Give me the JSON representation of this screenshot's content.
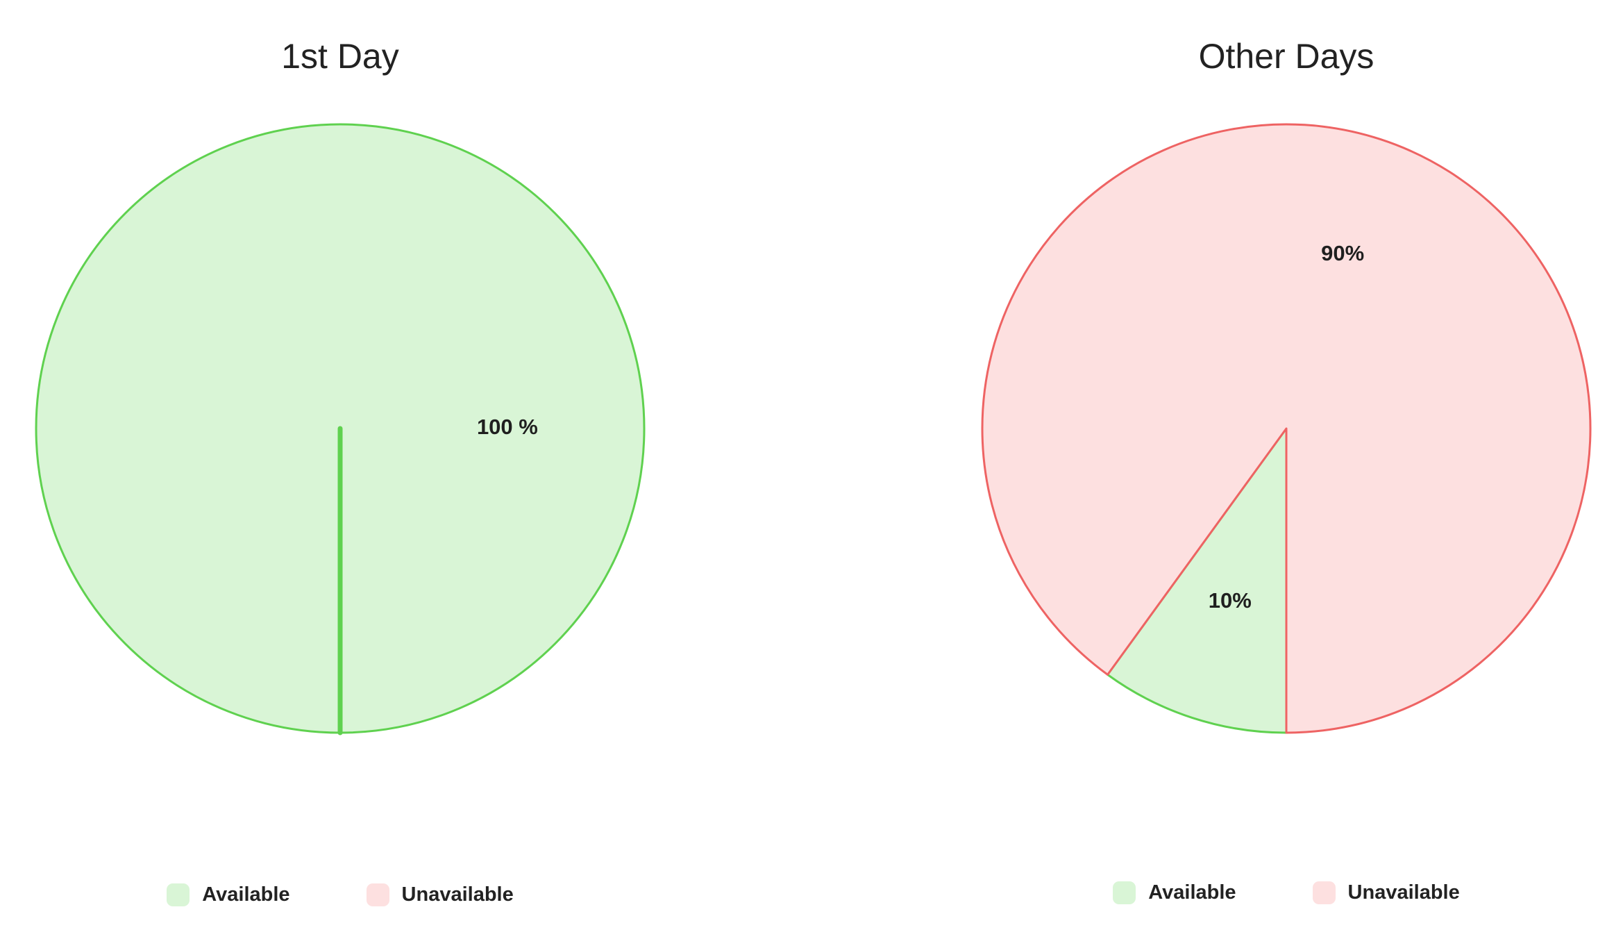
{
  "chart_data": [
    {
      "type": "pie",
      "title": "1st Day",
      "categories": [
        "Available",
        "Unavailable"
      ],
      "values": [
        100,
        0
      ],
      "data_labels": [
        "100 %",
        ""
      ],
      "legend": [
        "Available",
        "Unavailable"
      ],
      "legend_position": "bottom",
      "colors": {
        "Available": {
          "fill": "#d9f5d6",
          "stroke": "#5fd14f"
        },
        "Unavailable": {
          "fill": "#fde0e0",
          "stroke": "#ee6363"
        }
      }
    },
    {
      "type": "pie",
      "title": "Other Days",
      "categories": [
        "Available",
        "Unavailable"
      ],
      "values": [
        10,
        90
      ],
      "data_labels": [
        "10%",
        "90%"
      ],
      "legend": [
        "Available",
        "Unavailable"
      ],
      "legend_position": "bottom",
      "colors": {
        "Available": {
          "fill": "#d9f5d6",
          "stroke": "#5fd14f"
        },
        "Unavailable": {
          "fill": "#fde0e0",
          "stroke": "#ee6363"
        }
      }
    }
  ]
}
